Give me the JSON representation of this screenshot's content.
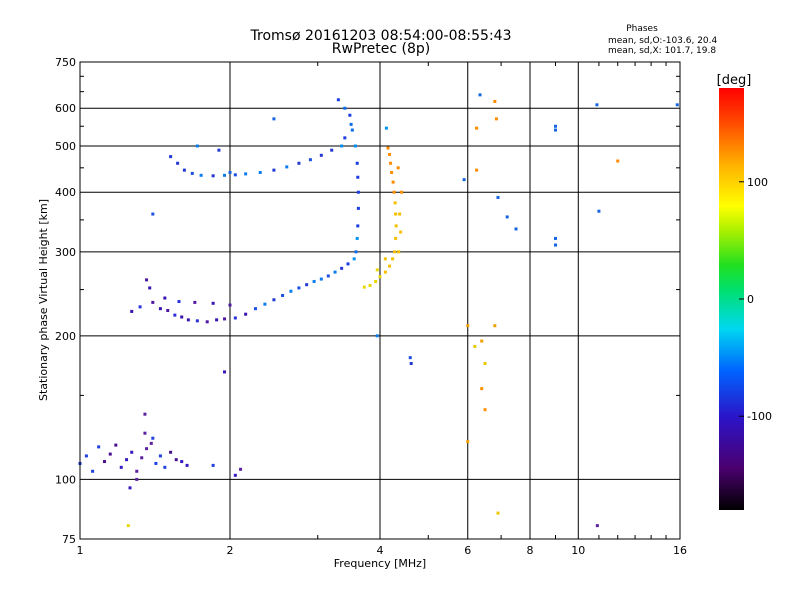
{
  "chart_data": {
    "type": "scatter",
    "title": "Tromsø 20161203 08:54:00-08:55:43",
    "subtitle": "RwPretec (8p)",
    "phases_box": {
      "title": "Phases",
      "line_o": "mean, sd,O:-103.6, 20.4",
      "line_x": "mean, sd,X: 101.7, 19.8"
    },
    "xlabel": "Frequency [MHz]",
    "ylabel": "Stationary phase Virtual Height [km]",
    "xscale": "log",
    "yscale": "log",
    "xlim": [
      1,
      16
    ],
    "ylim": [
      75,
      750
    ],
    "xticks": [
      1,
      2,
      4,
      6,
      8,
      10,
      16
    ],
    "xtick_labels": [
      "1",
      "2",
      "4",
      "6",
      "8",
      "10",
      "16"
    ],
    "yticks": [
      75,
      100,
      200,
      300,
      400,
      500,
      600,
      750
    ],
    "ytick_labels": [
      "75",
      "100",
      "200",
      "300",
      "400",
      "500",
      "600",
      "750"
    ],
    "grid": true,
    "colorbar": {
      "label": "[deg]",
      "range": [
        -180,
        180
      ],
      "ticks": [
        100,
        0,
        -100
      ],
      "tick_labels": [
        "100",
        "0",
        "-100"
      ]
    },
    "series": [
      {
        "mode": "O",
        "points": [
          [
            1.27,
            225
          ],
          [
            1.32,
            230
          ],
          [
            1.36,
            262
          ],
          [
            1.38,
            252
          ],
          [
            1.4,
            235
          ],
          [
            1.45,
            228
          ],
          [
            1.5,
            226
          ],
          [
            1.55,
            221
          ],
          [
            1.6,
            219
          ],
          [
            1.65,
            216
          ],
          [
            1.72,
            215
          ],
          [
            1.8,
            214
          ],
          [
            1.88,
            216
          ],
          [
            1.95,
            217
          ],
          [
            2.05,
            218
          ],
          [
            2.15,
            222
          ],
          [
            2.25,
            228
          ],
          [
            2.35,
            233
          ],
          [
            2.45,
            238
          ],
          [
            2.55,
            243
          ],
          [
            2.65,
            248
          ],
          [
            2.75,
            252
          ],
          [
            2.85,
            256
          ],
          [
            2.95,
            260
          ],
          [
            3.05,
            263
          ],
          [
            3.15,
            267
          ],
          [
            3.25,
            272
          ],
          [
            3.35,
            277
          ],
          [
            3.45,
            283
          ],
          [
            3.55,
            290
          ],
          [
            3.58,
            300
          ],
          [
            3.6,
            320
          ],
          [
            3.61,
            340
          ],
          [
            3.62,
            370
          ],
          [
            3.62,
            400
          ],
          [
            3.61,
            430
          ],
          [
            3.6,
            460
          ],
          [
            3.57,
            500
          ],
          [
            3.52,
            540
          ],
          [
            3.48,
            580
          ],
          [
            3.4,
            600
          ],
          [
            3.3,
            625
          ],
          [
            3.5,
            555
          ],
          [
            3.4,
            520
          ],
          [
            3.35,
            500
          ],
          [
            3.2,
            490
          ],
          [
            3.05,
            478
          ],
          [
            2.9,
            468
          ],
          [
            2.75,
            460
          ],
          [
            2.6,
            452
          ],
          [
            2.45,
            445
          ],
          [
            2.3,
            440
          ],
          [
            2.15,
            437
          ],
          [
            2.05,
            435
          ],
          [
            1.95,
            434
          ],
          [
            1.85,
            433
          ],
          [
            1.75,
            434
          ],
          [
            1.68,
            438
          ],
          [
            1.62,
            445
          ],
          [
            1.57,
            460
          ],
          [
            1.52,
            475
          ],
          [
            1.72,
            500
          ],
          [
            1.9,
            490
          ],
          [
            1.4,
            360
          ],
          [
            1.48,
            240
          ],
          [
            1.58,
            236
          ],
          [
            1.7,
            235
          ],
          [
            1.85,
            234
          ],
          [
            2.0,
            232
          ],
          [
            1.0,
            108
          ],
          [
            1.03,
            112
          ],
          [
            1.06,
            104
          ],
          [
            1.09,
            117
          ],
          [
            1.12,
            109
          ],
          [
            1.15,
            113
          ],
          [
            1.18,
            118
          ],
          [
            1.21,
            106
          ],
          [
            1.24,
            110
          ],
          [
            1.27,
            114
          ],
          [
            1.3,
            104
          ],
          [
            1.33,
            111
          ],
          [
            1.36,
            116
          ],
          [
            1.39,
            119
          ],
          [
            1.42,
            108
          ],
          [
            1.45,
            112
          ],
          [
            1.48,
            106
          ],
          [
            1.52,
            114
          ],
          [
            1.56,
            110
          ],
          [
            1.6,
            109
          ],
          [
            1.64,
            107
          ],
          [
            1.35,
            125
          ],
          [
            1.4,
            122
          ],
          [
            1.3,
            100
          ],
          [
            1.26,
            96
          ],
          [
            1.35,
            137
          ],
          [
            2.05,
            102
          ],
          [
            2.1,
            105
          ],
          [
            1.95,
            168
          ],
          [
            1.85,
            107
          ],
          [
            4.62,
            175
          ],
          [
            4.6,
            180
          ],
          [
            3.95,
            200
          ],
          [
            4.12,
            545
          ],
          [
            10.92,
            80
          ]
        ]
      },
      {
        "mode": "X",
        "points": [
          [
            3.72,
            253
          ],
          [
            3.82,
            255
          ],
          [
            3.92,
            260
          ],
          [
            4.0,
            266
          ],
          [
            4.1,
            272
          ],
          [
            4.18,
            280
          ],
          [
            4.24,
            290
          ],
          [
            4.28,
            300
          ],
          [
            4.3,
            320
          ],
          [
            4.31,
            340
          ],
          [
            4.3,
            360
          ],
          [
            4.29,
            380
          ],
          [
            4.27,
            400
          ],
          [
            4.25,
            420
          ],
          [
            4.22,
            440
          ],
          [
            4.2,
            460
          ],
          [
            4.18,
            480
          ],
          [
            4.15,
            495
          ],
          [
            4.4,
            330
          ],
          [
            4.38,
            360
          ],
          [
            4.42,
            400
          ],
          [
            4.35,
            450
          ],
          [
            4.36,
            300
          ],
          [
            4.1,
            290
          ],
          [
            3.95,
            275
          ],
          [
            6.0,
            210
          ],
          [
            6.2,
            190
          ],
          [
            6.4,
            195
          ],
          [
            6.5,
            175
          ],
          [
            6.4,
            155
          ],
          [
            6.5,
            140
          ],
          [
            6.0,
            120
          ],
          [
            6.8,
            210
          ],
          [
            6.9,
            85
          ],
          [
            6.8,
            620
          ],
          [
            6.85,
            570
          ],
          [
            6.25,
            545
          ],
          [
            6.25,
            445
          ],
          [
            12.0,
            465
          ],
          [
            1.25,
            80
          ]
        ]
      },
      {
        "mode": "isolated",
        "points": [
          [
            5.9,
            425
          ],
          [
            6.9,
            390
          ],
          [
            7.2,
            355
          ],
          [
            7.5,
            335
          ],
          [
            9.0,
            550
          ],
          [
            9.0,
            540
          ],
          [
            9.0,
            320
          ],
          [
            9.0,
            310
          ],
          [
            10.9,
            610
          ],
          [
            11.0,
            365
          ],
          [
            15.8,
            610
          ],
          [
            6.35,
            640
          ],
          [
            2.0,
            440
          ],
          [
            2.45,
            570
          ]
        ]
      }
    ]
  }
}
